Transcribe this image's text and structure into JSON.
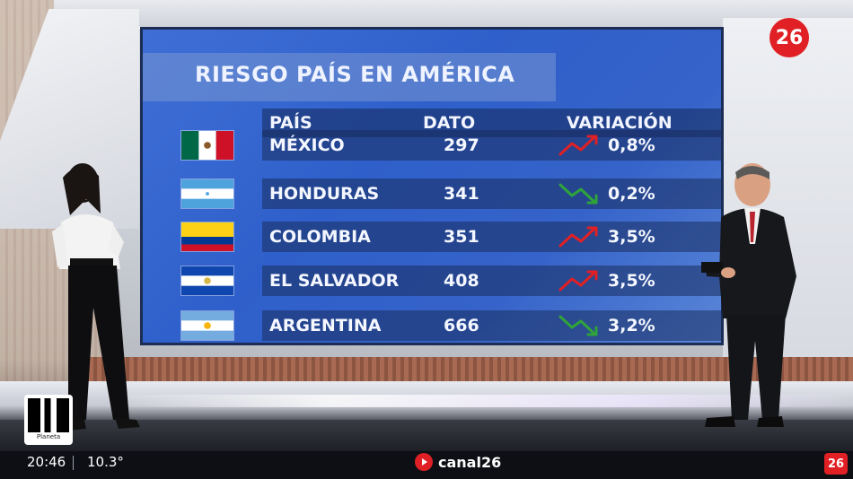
{
  "screen": {
    "title": "RIESGO PAÍS EN AMÉRICA",
    "headers": {
      "pais": "PAÍS",
      "dato": "DATO",
      "variacion": "VARIACIÓN"
    },
    "rows": [
      {
        "country": "MÉXICO",
        "dato": "297",
        "variacion": "0,8%",
        "trend": "up",
        "flag": "mexico-flag"
      },
      {
        "country": "HONDURAS",
        "dato": "341",
        "variacion": "0,2%",
        "trend": "down",
        "flag": "honduras-flag"
      },
      {
        "country": "COLOMBIA",
        "dato": "351",
        "variacion": "3,5%",
        "trend": "up",
        "flag": "colombia-flag"
      },
      {
        "country": "EL SALVADOR",
        "dato": "408",
        "variacion": "3,5%",
        "trend": "up",
        "flag": "el-salvador-flag"
      },
      {
        "country": "ARGENTINA",
        "dato": "666",
        "variacion": "3,2%",
        "trend": "down",
        "flag": "argentina-flag"
      }
    ]
  },
  "branding": {
    "logo": "26",
    "channel": "canal26",
    "mini_logo": "26"
  },
  "ticker": {
    "time": "20:46",
    "temperature": "10.3°"
  },
  "qr": {
    "label": "Planeta"
  },
  "colors": {
    "up": "#e02024",
    "down": "#2fa43a",
    "brand": "#e02024"
  }
}
